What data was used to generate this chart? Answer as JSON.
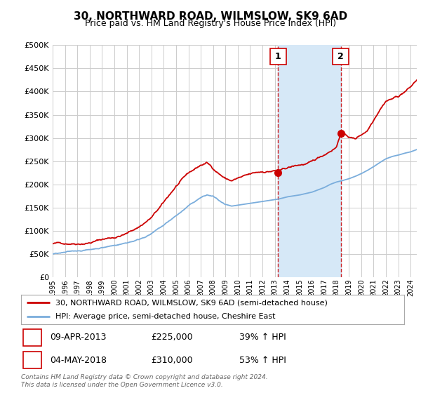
{
  "title": "30, NORTHWARD ROAD, WILMSLOW, SK9 6AD",
  "subtitle": "Price paid vs. HM Land Registry's House Price Index (HPI)",
  "background_color": "#ffffff",
  "plot_bg_color": "#ffffff",
  "grid_color": "#cccccc",
  "ylim": [
    0,
    500000
  ],
  "yticks": [
    0,
    50000,
    100000,
    150000,
    200000,
    250000,
    300000,
    350000,
    400000,
    450000,
    500000
  ],
  "ytick_labels": [
    "£0",
    "£50K",
    "£100K",
    "£150K",
    "£200K",
    "£250K",
    "£300K",
    "£350K",
    "£400K",
    "£450K",
    "£500K"
  ],
  "transaction1_year": 2013.27,
  "transaction2_year": 2018.34,
  "transaction1_price": 225000,
  "transaction2_price": 310000,
  "transaction1_info": "09-APR-2013",
  "transaction2_info": "04-MAY-2018",
  "transaction1_pct": "39% ↑ HPI",
  "transaction2_pct": "53% ↑ HPI",
  "legend_line1": "30, NORTHWARD ROAD, WILMSLOW, SK9 6AD (semi-detached house)",
  "legend_line2": "HPI: Average price, semi-detached house, Cheshire East",
  "footer": "Contains HM Land Registry data © Crown copyright and database right 2024.\nThis data is licensed under the Open Government Licence v3.0.",
  "line_red_color": "#cc0000",
  "line_blue_color": "#7aaddc",
  "shade_color": "#d6e8f7",
  "vline_color": "#cc0000",
  "marker_box_color": "#cc0000",
  "xlim_start": 1995,
  "xlim_end": 2024.5,
  "red_xp": [
    1995,
    1996,
    1997,
    1998,
    1999,
    2000,
    2001,
    2002,
    2003,
    2004,
    2005,
    2006,
    2007,
    2007.5,
    2008,
    2008.5,
    2009,
    2009.5,
    2010,
    2011,
    2012,
    2013,
    2013.27,
    2014,
    2015,
    2016,
    2017,
    2017.5,
    2018,
    2018.34,
    2019,
    2019.5,
    2020,
    2020.5,
    2021,
    2021.5,
    2022,
    2022.5,
    2023,
    2023.5,
    2024,
    2024.5
  ],
  "red_yp": [
    72000,
    73000,
    76000,
    80000,
    87000,
    92000,
    100000,
    115000,
    135000,
    165000,
    200000,
    225000,
    242000,
    247000,
    235000,
    225000,
    215000,
    210000,
    215000,
    220000,
    225000,
    228000,
    225000,
    232000,
    238000,
    242000,
    258000,
    268000,
    278000,
    310000,
    300000,
    295000,
    305000,
    315000,
    340000,
    365000,
    385000,
    390000,
    395000,
    405000,
    415000,
    430000
  ],
  "blue_xp": [
    1995,
    1996,
    1997,
    1998,
    1999,
    2000,
    2001,
    2002,
    2003,
    2004,
    2005,
    2006,
    2007,
    2007.5,
    2008,
    2008.5,
    2009,
    2009.5,
    2010,
    2011,
    2012,
    2013,
    2013.27,
    2014,
    2015,
    2016,
    2017,
    2017.5,
    2018,
    2018.34,
    2019,
    2019.5,
    2020,
    2020.5,
    2021,
    2021.5,
    2022,
    2022.5,
    2023,
    2023.5,
    2024,
    2024.5
  ],
  "blue_yp": [
    50000,
    52000,
    55000,
    58000,
    63000,
    68000,
    74000,
    82000,
    95000,
    112000,
    132000,
    152000,
    170000,
    175000,
    172000,
    162000,
    152000,
    148000,
    150000,
    154000,
    158000,
    162000,
    163000,
    168000,
    172000,
    178000,
    188000,
    195000,
    200000,
    202000,
    207000,
    212000,
    218000,
    225000,
    233000,
    242000,
    250000,
    255000,
    258000,
    262000,
    265000,
    270000
  ]
}
